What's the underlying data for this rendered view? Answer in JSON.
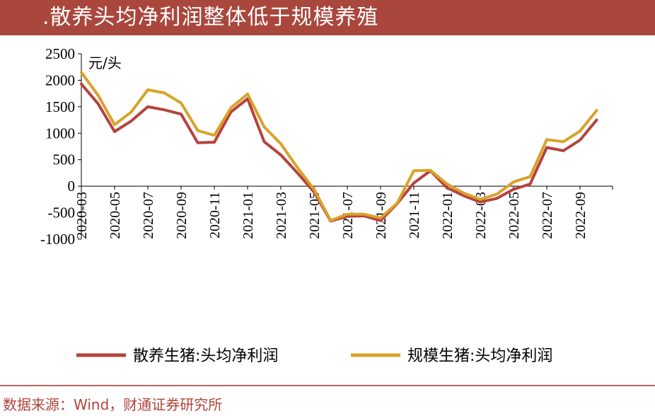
{
  "header": {
    "title": ".散养头均净利润整体低于规模养殖"
  },
  "source": "数据来源：Wind，财通证券研究所",
  "chart_data": {
    "type": "line",
    "unit_label": "元/头",
    "ylim": [
      -1000,
      2500
    ],
    "yticks": [
      -1000,
      -500,
      0,
      500,
      1000,
      1500,
      2000,
      2500
    ],
    "x": [
      "2020-03",
      "2020-04",
      "2020-05",
      "2020-06",
      "2020-07",
      "2020-08",
      "2020-09",
      "2020-10",
      "2020-11",
      "2020-12",
      "2021-01",
      "2021-02",
      "2021-03",
      "2021-04",
      "2021-05",
      "2021-06",
      "2021-07",
      "2021-08",
      "2021-09",
      "2021-10",
      "2021-11",
      "2021-12",
      "2022-01",
      "2022-02",
      "2022-03",
      "2022-04",
      "2022-05",
      "2022-06",
      "2022-07",
      "2022-08",
      "2022-09",
      "2022-10"
    ],
    "xtick_labels": [
      "2020-03",
      "2020-05",
      "2020-07",
      "2020-09",
      "2020-11",
      "2021-01",
      "2021-03",
      "2021-05",
      "2021-07",
      "2021-09",
      "2021-11",
      "2022-01",
      "2022-03",
      "2022-05",
      "2022-07",
      "2022-09"
    ],
    "series": [
      {
        "name": "散养生猪:头均净利润",
        "color": "#b5433c",
        "values": [
          1930,
          1560,
          1030,
          1230,
          1500,
          1440,
          1360,
          820,
          830,
          1400,
          1650,
          840,
          590,
          250,
          -110,
          -660,
          -570,
          -560,
          -650,
          -330,
          60,
          290,
          -30,
          -180,
          -300,
          -230,
          -60,
          40,
          730,
          670,
          870,
          1250
        ]
      },
      {
        "name": "规模生猪:头均净利润",
        "color": "#d9a22a",
        "values": [
          2150,
          1720,
          1160,
          1400,
          1820,
          1760,
          1570,
          1050,
          960,
          1480,
          1740,
          1120,
          800,
          350,
          -60,
          -650,
          -530,
          -530,
          -600,
          -320,
          290,
          300,
          40,
          -130,
          -250,
          -150,
          80,
          180,
          880,
          840,
          1040,
          1430
        ]
      }
    ],
    "legend_position": "bottom",
    "grid": false
  }
}
